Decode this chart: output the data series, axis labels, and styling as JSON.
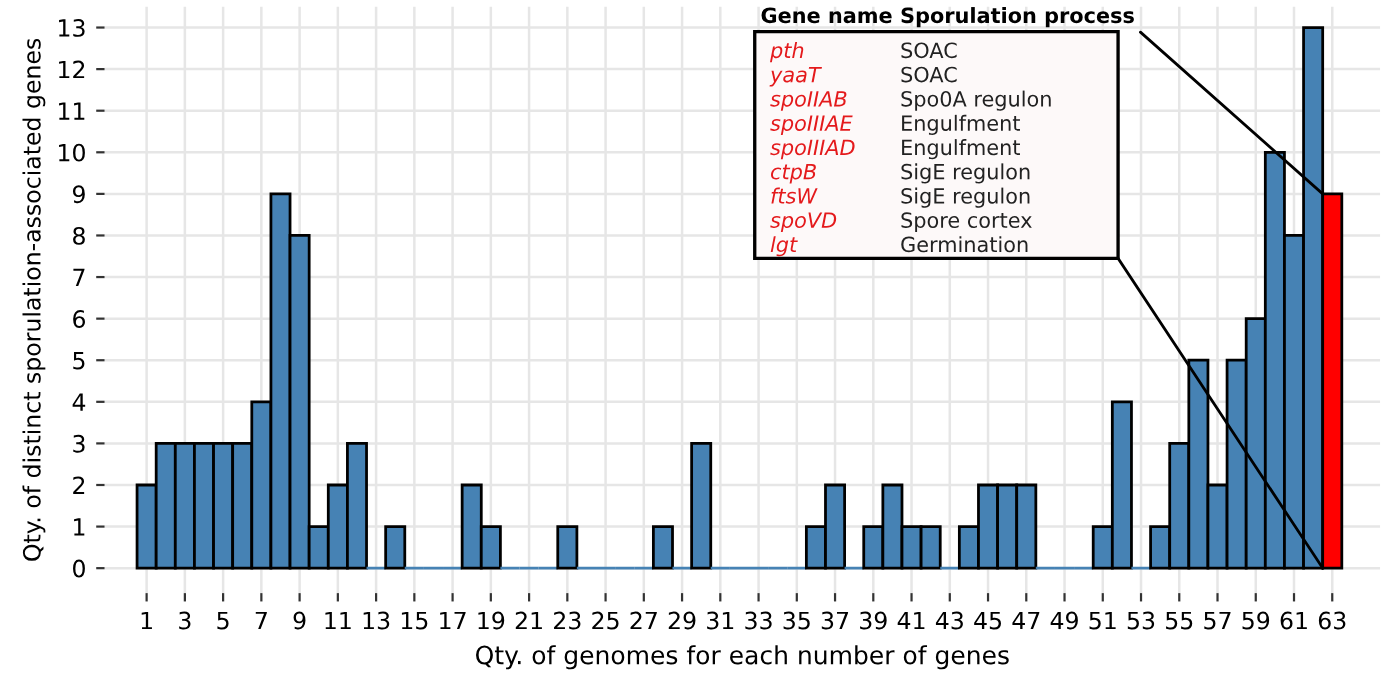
{
  "chart_data": {
    "type": "bar",
    "xlabel": "Qty. of genomes for each number of genes",
    "ylabel": "Qty. of distinct sporulation-associated genes",
    "x": [
      1,
      2,
      3,
      4,
      5,
      6,
      7,
      8,
      9,
      10,
      11,
      12,
      13,
      14,
      15,
      16,
      17,
      18,
      19,
      20,
      21,
      22,
      23,
      24,
      25,
      26,
      27,
      28,
      29,
      30,
      31,
      32,
      33,
      34,
      35,
      36,
      37,
      38,
      39,
      40,
      41,
      42,
      43,
      44,
      45,
      46,
      47,
      48,
      49,
      50,
      51,
      52,
      53,
      54,
      55,
      56,
      57,
      58,
      59,
      60,
      61,
      62,
      63
    ],
    "values": [
      2,
      3,
      3,
      3,
      3,
      3,
      4,
      9,
      8,
      1,
      2,
      3,
      0,
      1,
      0,
      0,
      0,
      2,
      1,
      0,
      0,
      0,
      1,
      0,
      0,
      0,
      0,
      1,
      0,
      3,
      0,
      0,
      0,
      0,
      0,
      1,
      2,
      0,
      1,
      2,
      1,
      1,
      0,
      1,
      2,
      2,
      2,
      0,
      0,
      0,
      1,
      4,
      0,
      1,
      3,
      5,
      2,
      5,
      6,
      10,
      8,
      13,
      9
    ],
    "colors": [
      "#4682b4",
      "#4682b4",
      "#4682b4",
      "#4682b4",
      "#4682b4",
      "#4682b4",
      "#4682b4",
      "#4682b4",
      "#4682b4",
      "#4682b4",
      "#4682b4",
      "#4682b4",
      "#4682b4",
      "#4682b4",
      "#4682b4",
      "#4682b4",
      "#4682b4",
      "#4682b4",
      "#4682b4",
      "#4682b4",
      "#4682b4",
      "#4682b4",
      "#4682b4",
      "#4682b4",
      "#4682b4",
      "#4682b4",
      "#4682b4",
      "#4682b4",
      "#4682b4",
      "#4682b4",
      "#4682b4",
      "#4682b4",
      "#4682b4",
      "#4682b4",
      "#4682b4",
      "#4682b4",
      "#4682b4",
      "#4682b4",
      "#4682b4",
      "#4682b4",
      "#4682b4",
      "#4682b4",
      "#4682b4",
      "#4682b4",
      "#4682b4",
      "#4682b4",
      "#4682b4",
      "#4682b4",
      "#4682b4",
      "#4682b4",
      "#4682b4",
      "#4682b4",
      "#4682b4",
      "#4682b4",
      "#4682b4",
      "#4682b4",
      "#4682b4",
      "#4682b4",
      "#4682b4",
      "#4682b4",
      "#4682b4",
      "#4682b4",
      "#ff0000"
    ],
    "xlim": [
      -1.2,
      65.5
    ],
    "xticks": [
      1,
      3,
      5,
      7,
      9,
      11,
      13,
      15,
      17,
      19,
      21,
      23,
      25,
      27,
      29,
      31,
      33,
      35,
      37,
      39,
      41,
      43,
      45,
      47,
      49,
      51,
      53,
      55,
      57,
      59,
      61,
      63
    ],
    "ylim": [
      -0.6,
      13.5
    ],
    "yticks": [
      0,
      1,
      2,
      3,
      4,
      5,
      6,
      7,
      8,
      9,
      10,
      11,
      12,
      13
    ],
    "grid": true,
    "annotations": [
      "Gene name",
      {
        "text": "Sporulation process",
        "x": 63,
        "y": 9
      },
      "pth",
      "SOAC",
      "yaaT",
      "SOAC",
      "spoIIAB",
      "Spo0A regulon",
      "spoIIIAE",
      "Engulfment",
      "spoIIIAD",
      "Engulfment",
      "ctpB",
      "SigE regulon",
      "ftsW",
      "SigE regulon",
      "spoVD",
      "Spore cortex",
      "lgt",
      "Germination"
    ]
  }
}
